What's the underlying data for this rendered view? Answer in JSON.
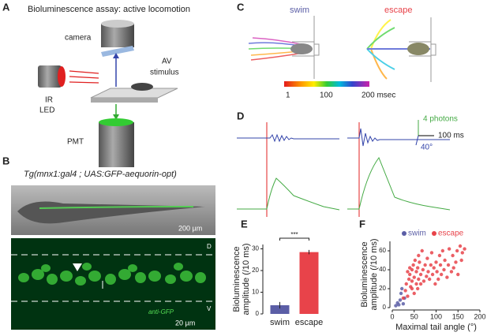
{
  "panel_a": {
    "label": "A",
    "title": "Bioluminescence assay: active locomotion",
    "camera": "camera",
    "stimulus": [
      "AV",
      "stimulus"
    ],
    "led": [
      "IR",
      "LED"
    ],
    "pmt": "PMT"
  },
  "panel_b": {
    "label": "B",
    "title": "Tg(mnx1:gal4 ; UAS:GFP-aequorin-opt)",
    "scale_top": "200 µm",
    "scale_bottom": "20 µm",
    "dorsal": "D",
    "ventral": "V",
    "stain": "anti-GFP"
  },
  "panel_c": {
    "label": "C",
    "titles": [
      "swim",
      "escape"
    ],
    "colorbar_ticks": [
      "1",
      "100",
      "200 msec"
    ]
  },
  "panel_d": {
    "label": "D",
    "scale": [
      "4 photons",
      "100 ms",
      "40°"
    ]
  },
  "chart_data": [
    {
      "type": "bar",
      "label": "E",
      "ylabel": [
        "Bioluminescence",
        "amplitude (/10 ms)"
      ],
      "categories": [
        "swim",
        "escape"
      ],
      "values": [
        4,
        28.5
      ],
      "errors": [
        1.5,
        1
      ],
      "colors": [
        "#5b5ea6",
        "#e8434a"
      ],
      "ylim": [
        0,
        32
      ],
      "yticks": [
        0,
        10,
        20,
        30
      ],
      "annotation": "***"
    },
    {
      "type": "scatter",
      "label": "F",
      "ylabel": [
        "Bioluminescence",
        "amplitude (/10 ms)"
      ],
      "xlabel": "Maximal tail angle (°)",
      "xlim": [
        0,
        200
      ],
      "xticks": [
        0,
        50,
        100,
        150,
        200
      ],
      "ylim": [
        0,
        70
      ],
      "yticks": [
        0,
        20,
        40,
        60
      ],
      "legend": "top",
      "series": [
        {
          "name": "swim",
          "color": "#5b5ea6",
          "x": [
            8,
            12,
            15,
            18,
            20,
            22,
            25,
            28
          ],
          "values": [
            2,
            5,
            3,
            8,
            15,
            20,
            4,
            10
          ]
        },
        {
          "name": "escape",
          "color": "#e8434a",
          "x": [
            25,
            30,
            32,
            35,
            38,
            40,
            42,
            45,
            45,
            48,
            50,
            52,
            55,
            55,
            58,
            60,
            60,
            62,
            65,
            68,
            70,
            72,
            75,
            78,
            80,
            82,
            85,
            88,
            90,
            92,
            95,
            98,
            100,
            102,
            105,
            108,
            110,
            112,
            115,
            118,
            120,
            125,
            128,
            130,
            135,
            138,
            140,
            145,
            148,
            150,
            155,
            158,
            160,
            165,
            45,
            50,
            58,
            65,
            40,
            35
          ],
          "values": [
            10,
            18,
            25,
            12,
            30,
            35,
            22,
            40,
            28,
            45,
            32,
            50,
            38,
            25,
            42,
            55,
            30,
            48,
            35,
            60,
            40,
            28,
            45,
            33,
            52,
            38,
            30,
            45,
            58,
            35,
            42,
            25,
            48,
            38,
            30,
            55,
            45,
            35,
            60,
            40,
            50,
            32,
            45,
            62,
            38,
            55,
            42,
            48,
            60,
            35,
            65,
            50,
            58,
            62,
            20,
            15,
            20,
            25,
            42,
            38
          ]
        }
      ]
    }
  ]
}
